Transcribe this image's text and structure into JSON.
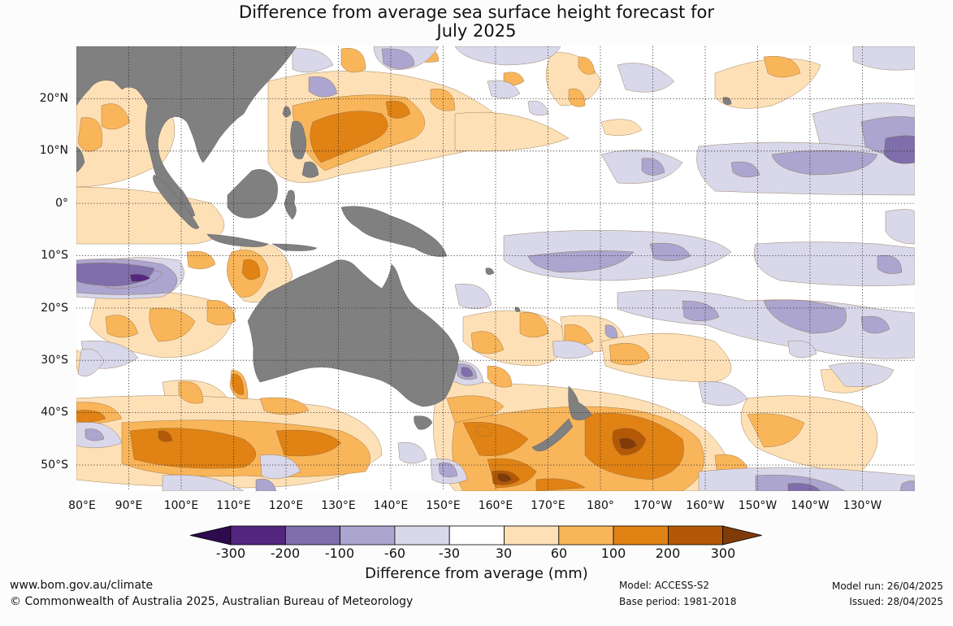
{
  "title": {
    "line1": "Difference from average sea surface height forecast for",
    "line2": "July 2025"
  },
  "map": {
    "region": "Western Pacific and Indian Ocean",
    "lon_range_deg": [
      80,
      240
    ],
    "lat_range_deg": [
      -55,
      30
    ],
    "graticule": "dotted, every 10°",
    "land_color": "#808080",
    "ocean_neutral_color": "#ffffff",
    "lat_labels": [
      "20°N",
      "10°N",
      "0°",
      "10°S",
      "20°S",
      "30°S",
      "40°S",
      "50°S"
    ],
    "lon_labels": [
      "80°E",
      "90°E",
      "100°E",
      "110°E",
      "120°E",
      "130°E",
      "140°E",
      "150°E",
      "160°E",
      "170°E",
      "180°",
      "170°W",
      "160°W",
      "150°W",
      "140°W",
      "130°W"
    ]
  },
  "colorbar": {
    "label": "Difference from average (mm)",
    "ticks": [
      "-300",
      "-200",
      "-100",
      "-60",
      "-30",
      "30",
      "60",
      "100",
      "200",
      "300"
    ],
    "bins": [
      {
        "range": "< -300",
        "color": "#2e0b4e"
      },
      {
        "range": "-300 to -200",
        "color": "#54267f"
      },
      {
        "range": "-200 to -100",
        "color": "#7e6eac"
      },
      {
        "range": "-100 to -60",
        "color": "#aba5cf"
      },
      {
        "range": "-60 to -30",
        "color": "#d9d7ea"
      },
      {
        "range": "-30 to 30",
        "color": "#ffffff"
      },
      {
        "range": "30 to 60",
        "color": "#fee0b6"
      },
      {
        "range": "60 to 100",
        "color": "#f9b55a"
      },
      {
        "range": "100 to 200",
        "color": "#e08214"
      },
      {
        "range": "200 to 300",
        "color": "#b35806"
      },
      {
        "range": "> 300",
        "color": "#7f3b08"
      }
    ]
  },
  "footer": {
    "website": "www.bom.gov.au/climate",
    "copyright": "© Commonwealth of Australia 2025, Australian Bureau of Meteorology",
    "model": "Model: ACCESS-S2",
    "base_period": "Base period: 1981-2018",
    "model_run": "Model run: 26/04/2025",
    "issued": "Issued: 28/04/2025"
  }
}
